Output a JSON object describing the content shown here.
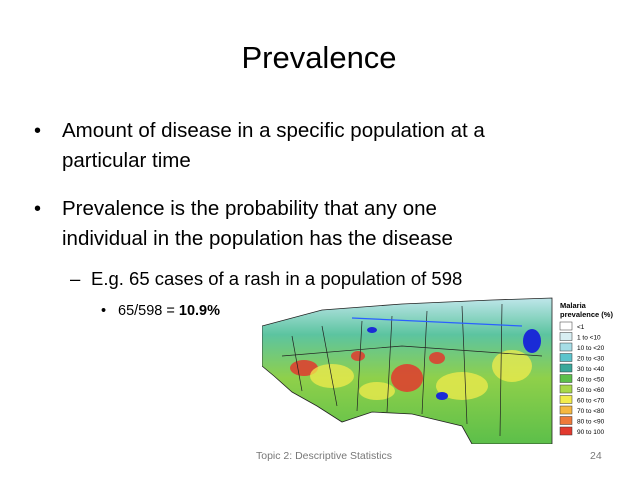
{
  "slide": {
    "title": "Prevalence",
    "bullets": [
      {
        "lines": [
          "Amount of disease in a specific population at a",
          "particular time"
        ]
      },
      {
        "lines": [
          "Prevalence is the probability that any one",
          "individual in the population has the disease"
        ]
      }
    ],
    "sub_bullet": "E.g. 65 cases of a rash in a population of 598",
    "sub_sub_bullet": {
      "text": "65/598 = ",
      "bold": "10.9%"
    },
    "map_legend": {
      "title": [
        "Malaria",
        "prevalence (%)"
      ],
      "items": [
        {
          "label": "<1",
          "color": "#ffffff"
        },
        {
          "label": "1 to <10",
          "color": "#d8eef2"
        },
        {
          "label": "10 to <20",
          "color": "#a6dde6"
        },
        {
          "label": "20 to <30",
          "color": "#5cc4cc"
        },
        {
          "label": "30 to <40",
          "color": "#3aa89a"
        },
        {
          "label": "40 to <50",
          "color": "#5cbf4a"
        },
        {
          "label": "50 to <60",
          "color": "#a8d84a"
        },
        {
          "label": "60 to <70",
          "color": "#f2ec4c"
        },
        {
          "label": "70 to <80",
          "color": "#f5b841"
        },
        {
          "label": "80 to <90",
          "color": "#ee7a3a"
        },
        {
          "label": "90 to 100",
          "color": "#e23a2e"
        }
      ]
    },
    "footer": {
      "topic": "Topic 2: Descriptive Statistics",
      "page": "24"
    }
  }
}
